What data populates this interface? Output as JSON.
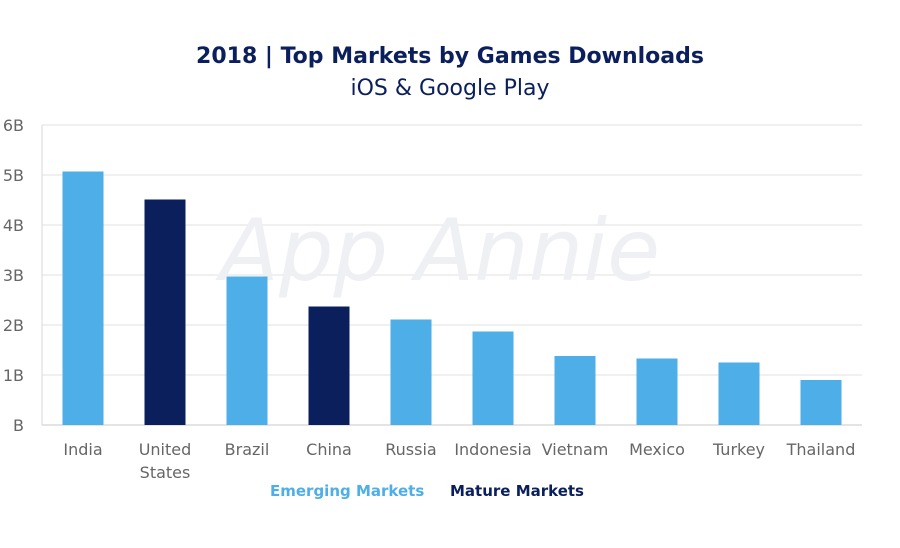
{
  "chart_data": {
    "type": "bar",
    "title": "2018 | Top Markets by Games Downloads",
    "subtitle": "iOS & Google Play",
    "categories": [
      "India",
      "United States",
      "Brazil",
      "China",
      "Russia",
      "Indonesia",
      "Vietnam",
      "Mexico",
      "Turkey",
      "Thailand"
    ],
    "values": [
      5.07,
      4.51,
      2.97,
      2.37,
      2.11,
      1.87,
      1.38,
      1.33,
      1.25,
      0.9
    ],
    "groups": [
      "Emerging Markets",
      "Mature Markets",
      "Emerging Markets",
      "Mature Markets",
      "Emerging Markets",
      "Emerging Markets",
      "Emerging Markets",
      "Emerging Markets",
      "Emerging Markets",
      "Emerging Markets"
    ],
    "ylim": [
      0,
      6
    ],
    "yticks": [
      "B",
      "1B",
      "2B",
      "3B",
      "4B",
      "5B",
      "6B"
    ],
    "xlabel": "",
    "ylabel": "",
    "grid": true,
    "legend": {
      "position": "bottom",
      "entries": [
        {
          "name": "Emerging Markets",
          "color": "#4eaee8"
        },
        {
          "name": "Mature Markets",
          "color": "#0a1f5c"
        }
      ]
    },
    "watermark": "App Annie"
  }
}
